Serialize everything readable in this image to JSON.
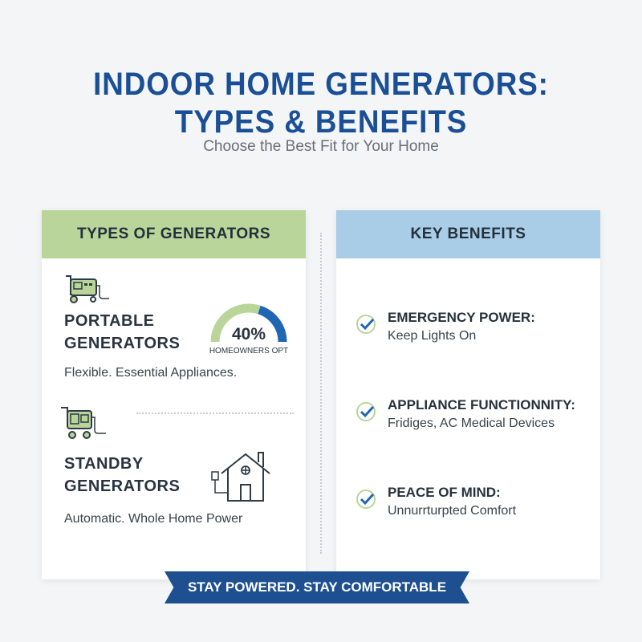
{
  "header": {
    "title_line1": "INDOOR HOME GENERATORS:",
    "title_line2": "TYPES & BENEFITS",
    "subtitle": "Choose the Best Fit for Your Home"
  },
  "colors": {
    "title": "#1b4f95",
    "green": "#b9d59a",
    "blue_header": "#a9cde6",
    "accent_blue": "#1f66b3",
    "ribbon": "#1d4f91"
  },
  "types": {
    "heading": "TYPES OF GENERATORS",
    "items": [
      {
        "icon": "portable-generator-icon",
        "title_line1": "PORTABLE",
        "title_line2": "GENERATORS",
        "desc": "Flexible. Essential Appliances."
      },
      {
        "icon": "standby-generator-icon",
        "title_line1": "STANDBY",
        "title_line2": "GENERATORS",
        "desc": "Automatic. Whole Home Power"
      }
    ],
    "gauge": {
      "value": 40,
      "label": "40%",
      "caption": "HOMEOWNERS OPT"
    }
  },
  "benefits": {
    "heading": "KEY BENEFITS",
    "items": [
      {
        "title": "EMERGENCY POWER:",
        "desc": "Keep Lights On"
      },
      {
        "title": "APPLIANCE FUNCTIONNITY:",
        "desc": "Fridiges, AC Medical Devices"
      },
      {
        "title": "PEACE OF MIND:",
        "desc": "Unnurrturpted Comfort"
      }
    ]
  },
  "footer": {
    "banner": "STAY POWERED. STAY COMFORTABLE"
  }
}
